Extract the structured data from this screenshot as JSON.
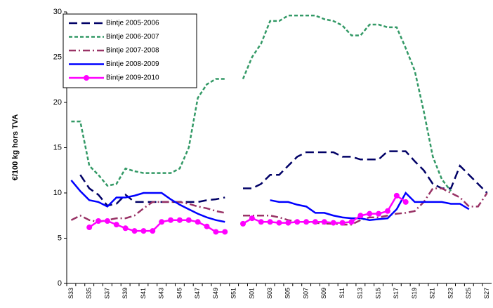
{
  "chart_data": {
    "type": "line",
    "y_label": "€/100 kg hors TVA",
    "categories": [
      "S33",
      null,
      "S35",
      null,
      "S37",
      null,
      "S39",
      null,
      "S41",
      null,
      "S43",
      null,
      "S45",
      null,
      "S47",
      null,
      "S49",
      null,
      "S51",
      null,
      "S01",
      null,
      "S03",
      null,
      "S05",
      null,
      "S07",
      null,
      "S09",
      null,
      "S11",
      null,
      "S13",
      null,
      "S15",
      null,
      "S17",
      null,
      "S19",
      null,
      "S21",
      null,
      "S23",
      null,
      "S25",
      null,
      "S27"
    ],
    "ylim": [
      0,
      30
    ],
    "yticks": [
      0,
      5,
      10,
      15,
      20,
      25,
      30
    ],
    "grid": false,
    "legend": "upper left",
    "series": [
      {
        "name": "Bintje 2005-2006",
        "color": "#000066",
        "style": "dashed",
        "values": [
          null,
          12,
          10.5,
          9.8,
          8.6,
          8.8,
          9.8,
          9,
          9,
          9,
          9,
          9,
          9,
          9,
          9,
          9.2,
          9.3,
          9.5,
          null,
          10.5,
          10.5,
          11,
          12,
          12,
          13,
          14,
          14.5,
          14.5,
          14.5,
          14.5,
          14,
          14,
          13.7,
          13.7,
          13.7,
          14.6,
          14.6,
          14.6,
          13.5,
          12.5,
          11,
          10.5,
          10.5,
          13,
          12,
          11,
          10
        ]
      },
      {
        "name": "Bintje 2006-2007",
        "color": "#339966",
        "style": "dotted",
        "values": [
          17.9,
          17.9,
          13,
          12,
          10.8,
          11,
          12.7,
          12.4,
          12.2,
          12.2,
          12.2,
          12.2,
          12.7,
          15,
          20.5,
          22,
          22.6,
          22.6,
          null,
          22.6,
          25,
          26.5,
          29,
          29,
          29.6,
          29.6,
          29.6,
          29.6,
          29.2,
          29,
          28.5,
          27.4,
          27.4,
          28.6,
          28.6,
          28.3,
          28.3,
          26,
          23.5,
          19,
          14,
          11.5,
          10.2,
          null,
          null,
          null,
          null
        ]
      },
      {
        "name": "Bintje 2007-2008",
        "color": "#993366",
        "style": "dashdot",
        "values": [
          7,
          7.5,
          7,
          6.8,
          7,
          7.2,
          7.2,
          7.5,
          8.3,
          9,
          9,
          9,
          9,
          8.8,
          8.5,
          8.3,
          8,
          7.8,
          null,
          7.5,
          7.5,
          7.5,
          7.5,
          7.3,
          7,
          6.8,
          6.8,
          6.7,
          6.6,
          6.6,
          6.5,
          6.5,
          7,
          7.3,
          7.3,
          7.5,
          7.7,
          7.8,
          8,
          9,
          10.5,
          10.5,
          10,
          9.5,
          8.5,
          8.5,
          10
        ]
      },
      {
        "name": "Bintje 2008-2009",
        "color": "#0000ff",
        "style": "solid",
        "values": [
          11.4,
          10.2,
          9.2,
          9,
          8.5,
          9.5,
          9.5,
          9.7,
          10,
          10,
          10,
          9.3,
          8.7,
          8.2,
          7.7,
          7.3,
          7,
          6.8,
          null,
          null,
          null,
          null,
          9.2,
          9,
          9,
          8.7,
          8.5,
          7.8,
          7.8,
          7.5,
          7.3,
          7.2,
          7.2,
          7,
          7.1,
          7.2,
          8.2,
          10,
          9,
          9,
          9,
          9,
          8.8,
          8.8,
          8.2,
          null,
          null
        ]
      },
      {
        "name": "Bintje 2009-2010",
        "color": "#ff00ff",
        "style": "solid",
        "marker": "circle",
        "values": [
          null,
          null,
          6.2,
          6.9,
          6.9,
          6.5,
          6.1,
          5.8,
          5.8,
          5.8,
          6.8,
          7,
          7,
          7,
          6.8,
          6.3,
          5.7,
          5.7,
          null,
          6.6,
          7.2,
          6.8,
          6.8,
          6.7,
          6.7,
          6.8,
          6.8,
          6.8,
          6.8,
          6.7,
          6.7,
          6.8,
          7.5,
          7.7,
          7.7,
          8,
          9.7,
          9,
          null,
          null,
          null,
          null,
          null,
          null,
          null,
          null,
          null
        ]
      }
    ]
  }
}
